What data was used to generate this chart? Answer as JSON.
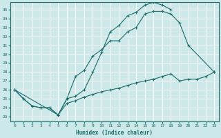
{
  "xlabel": "Humidex (Indice chaleur)",
  "background_color": "#cde8e8",
  "grid_color": "#b8d4d4",
  "line_color": "#1a6b6b",
  "xlim": [
    -0.5,
    23.5
  ],
  "ylim": [
    22.5,
    35.8
  ],
  "xticks": [
    0,
    1,
    2,
    3,
    4,
    5,
    6,
    7,
    8,
    9,
    10,
    11,
    12,
    13,
    14,
    15,
    16,
    17,
    18,
    19,
    20,
    21,
    22,
    23
  ],
  "yticks": [
    23,
    24,
    25,
    26,
    27,
    28,
    29,
    30,
    31,
    32,
    33,
    34,
    35
  ],
  "curve1_x": [
    0,
    1,
    2,
    3,
    4,
    5,
    6,
    7,
    8,
    9,
    10,
    11,
    12,
    13,
    14,
    15,
    16,
    17,
    18
  ],
  "curve1_y": [
    26.0,
    25.0,
    24.2,
    24.0,
    24.0,
    23.2,
    25.0,
    25.3,
    26.0,
    28.0,
    30.2,
    32.5,
    33.2,
    34.3,
    34.7,
    35.5,
    35.8,
    35.5,
    35.0
  ],
  "curve2_x": [
    0,
    1,
    2,
    3,
    4,
    5,
    6,
    7,
    8,
    9,
    10,
    11,
    12,
    13,
    14,
    15,
    16,
    17,
    18,
    19,
    20,
    23
  ],
  "curve2_y": [
    26.0,
    25.0,
    24.2,
    24.0,
    24.0,
    23.2,
    25.0,
    27.5,
    28.2,
    29.8,
    30.5,
    31.5,
    31.5,
    32.5,
    33.0,
    34.5,
    34.8,
    34.8,
    34.5,
    33.5,
    31.0,
    28.0
  ],
  "curve3_x": [
    0,
    5,
    6,
    7,
    8,
    9,
    10,
    11,
    12,
    13,
    14,
    15,
    16,
    17,
    18,
    19,
    20,
    21,
    22,
    23
  ],
  "curve3_y": [
    26.0,
    23.2,
    24.5,
    24.8,
    25.2,
    25.5,
    25.8,
    26.0,
    26.2,
    26.5,
    26.8,
    27.0,
    27.2,
    27.5,
    27.8,
    27.0,
    27.2,
    27.2,
    27.5,
    28.0
  ]
}
